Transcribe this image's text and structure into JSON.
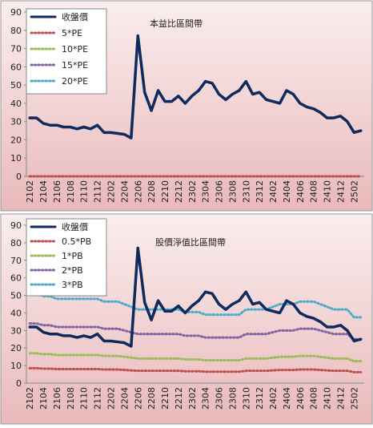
{
  "chart_data": [
    {
      "type": "line",
      "title": "本益比區間帶",
      "categories": [
        "2102",
        null,
        "2104",
        null,
        "2106",
        null,
        "2108",
        null,
        "2110",
        null,
        "2112",
        null,
        "2202",
        null,
        "2204",
        null,
        "2206",
        null,
        "2208",
        null,
        "2210",
        null,
        "2212",
        null,
        "2302",
        null,
        "2304",
        null,
        "2306",
        null,
        "2308",
        null,
        "2310",
        null,
        "2312",
        null,
        "2402",
        null,
        "2404",
        null,
        "2406",
        null,
        "2408",
        null,
        "2410",
        null,
        "2412",
        null,
        "2502",
        null
      ],
      "ylim": [
        0,
        90
      ],
      "yticks": [
        0,
        10,
        20,
        30,
        40,
        50,
        60,
        70,
        80,
        90
      ],
      "legend": "upper left",
      "series": [
        {
          "name": "收盤價",
          "color": "#0f2a5c",
          "values": [
            32,
            32,
            29,
            28,
            28,
            27,
            27,
            26,
            27,
            26,
            28,
            24,
            24,
            23.5,
            23,
            21,
            77,
            46,
            36,
            47,
            41,
            41,
            44,
            40,
            44,
            47,
            52,
            51,
            45,
            42,
            45,
            47,
            52,
            45,
            46,
            42,
            41,
            40,
            47,
            45,
            40,
            38,
            37,
            35,
            32,
            32,
            33,
            30,
            24,
            25
          ]
        },
        {
          "name": "5*PE",
          "color": "#c0504d",
          "values": [
            0,
            0,
            0,
            0,
            0,
            0,
            0,
            0,
            0,
            0,
            0,
            0,
            0,
            0,
            0,
            0,
            0,
            0,
            0,
            0,
            0,
            0,
            0,
            0,
            0,
            0,
            0,
            0,
            0,
            0,
            0,
            0,
            0,
            0,
            0,
            0,
            0,
            0,
            0,
            0,
            0,
            0,
            0,
            0,
            0,
            0,
            0,
            0,
            0,
            0
          ]
        },
        {
          "name": "10*PE",
          "color": "#9bbb59",
          "values": [
            0,
            0,
            0,
            0,
            0,
            0,
            0,
            0,
            0,
            0,
            0,
            0,
            0,
            0,
            0,
            0,
            0,
            0,
            0,
            0,
            0,
            0,
            0,
            0,
            0,
            0,
            0,
            0,
            0,
            0,
            0,
            0,
            0,
            0,
            0,
            0,
            0,
            0,
            0,
            0,
            0,
            0,
            0,
            0,
            0,
            0,
            0,
            0,
            0,
            0
          ]
        },
        {
          "name": "15*PE",
          "color": "#8064a2",
          "values": [
            0,
            0,
            0,
            0,
            0,
            0,
            0,
            0,
            0,
            0,
            0,
            0,
            0,
            0,
            0,
            0,
            0,
            0,
            0,
            0,
            0,
            0,
            0,
            0,
            0,
            0,
            0,
            0,
            0,
            0,
            0,
            0,
            0,
            0,
            0,
            0,
            0,
            0,
            0,
            0,
            0,
            0,
            0,
            0,
            0,
            0,
            0,
            0,
            0,
            0
          ]
        },
        {
          "name": "20*PE",
          "color": "#4bacc6",
          "values": [
            0,
            0,
            0,
            0,
            0,
            0,
            0,
            0,
            0,
            0,
            0,
            0,
            0,
            0,
            0,
            0,
            0,
            0,
            0,
            0,
            0,
            0,
            0,
            0,
            0,
            0,
            0,
            0,
            0,
            0,
            0,
            0,
            0,
            0,
            0,
            0,
            0,
            0,
            0,
            0,
            0,
            0,
            0,
            0,
            0,
            0,
            0,
            0,
            0,
            0
          ]
        }
      ]
    },
    {
      "type": "line",
      "title": "股價淨值比區間帶",
      "categories": [
        "2102",
        null,
        "2104",
        null,
        "2106",
        null,
        "2108",
        null,
        "2110",
        null,
        "2112",
        null,
        "2202",
        null,
        "2204",
        null,
        "2206",
        null,
        "2208",
        null,
        "2210",
        null,
        "2212",
        null,
        "2302",
        null,
        "2304",
        null,
        "2306",
        null,
        "2308",
        null,
        "2310",
        null,
        "2312",
        null,
        "2402",
        null,
        "2404",
        null,
        "2406",
        null,
        "2408",
        null,
        "2410",
        null,
        "2412",
        null,
        "2502",
        null
      ],
      "ylim": [
        0,
        90
      ],
      "yticks": [
        0,
        10,
        20,
        30,
        40,
        50,
        60,
        70,
        80,
        90
      ],
      "legend": "upper left",
      "series": [
        {
          "name": "收盤價",
          "color": "#0f2a5c",
          "values": [
            32,
            32,
            29,
            28,
            28,
            27,
            27,
            26,
            27,
            26,
            28,
            24,
            24,
            23.5,
            23,
            21,
            77,
            46,
            36,
            47,
            41,
            41,
            44,
            40,
            44,
            47,
            52,
            51,
            45,
            42,
            45,
            47,
            52,
            45,
            46,
            42,
            41,
            40,
            47,
            45,
            40,
            38,
            37,
            35,
            32,
            32,
            33,
            30,
            24,
            25
          ]
        },
        {
          "name": "0.5*PB",
          "color": "#c0504d",
          "values": [
            8.5,
            8.5,
            8.25,
            8.25,
            8,
            8,
            8,
            8,
            8,
            8,
            8,
            7.75,
            7.75,
            7.75,
            7.5,
            7.25,
            7,
            7,
            7,
            7,
            7,
            7,
            7,
            6.75,
            6.75,
            6.75,
            6.5,
            6.5,
            6.5,
            6.5,
            6.5,
            6.5,
            7,
            7,
            7,
            7,
            7.25,
            7.5,
            7.5,
            7.5,
            7.75,
            7.75,
            7.75,
            7.5,
            7.25,
            7,
            7,
            7,
            6.25,
            6.25
          ]
        },
        {
          "name": "1*PB",
          "color": "#9bbb59",
          "values": [
            17,
            17,
            16.5,
            16.5,
            16,
            16,
            16,
            16,
            16,
            16,
            16,
            15.5,
            15.5,
            15.5,
            15,
            14.5,
            14,
            14,
            14,
            14,
            14,
            14,
            14,
            13.5,
            13.5,
            13.5,
            13,
            13,
            13,
            13,
            13,
            13,
            14,
            14,
            14,
            14,
            14.5,
            15,
            15,
            15,
            15.5,
            15.5,
            15.5,
            15,
            14.5,
            14,
            14,
            14,
            12.5,
            12.5
          ]
        },
        {
          "name": "2*PB",
          "color": "#8064a2",
          "values": [
            34,
            34,
            33,
            33,
            32,
            32,
            32,
            32,
            32,
            32,
            32,
            31,
            31,
            31,
            30,
            29,
            28,
            28,
            28,
            28,
            28,
            28,
            28,
            27,
            27,
            27,
            26,
            26,
            26,
            26,
            26,
            26,
            28,
            28,
            28,
            28,
            29,
            30,
            30,
            30,
            31,
            31,
            31,
            30,
            29,
            28,
            28,
            28,
            25,
            25
          ]
        },
        {
          "name": "3*PB",
          "color": "#4bacc6",
          "values": [
            51,
            51,
            49.5,
            49.5,
            48,
            48,
            48,
            48,
            48,
            48,
            48,
            46.5,
            46.5,
            46.5,
            45,
            43.5,
            42,
            42,
            42,
            42,
            42,
            42,
            42,
            40.5,
            40.5,
            40.5,
            39,
            39,
            39,
            39,
            39,
            39,
            42,
            42,
            42,
            42,
            43.5,
            45,
            45,
            45,
            46.5,
            46.5,
            46.5,
            45,
            43.5,
            42,
            42,
            42,
            37.5,
            37.5
          ]
        }
      ]
    }
  ]
}
